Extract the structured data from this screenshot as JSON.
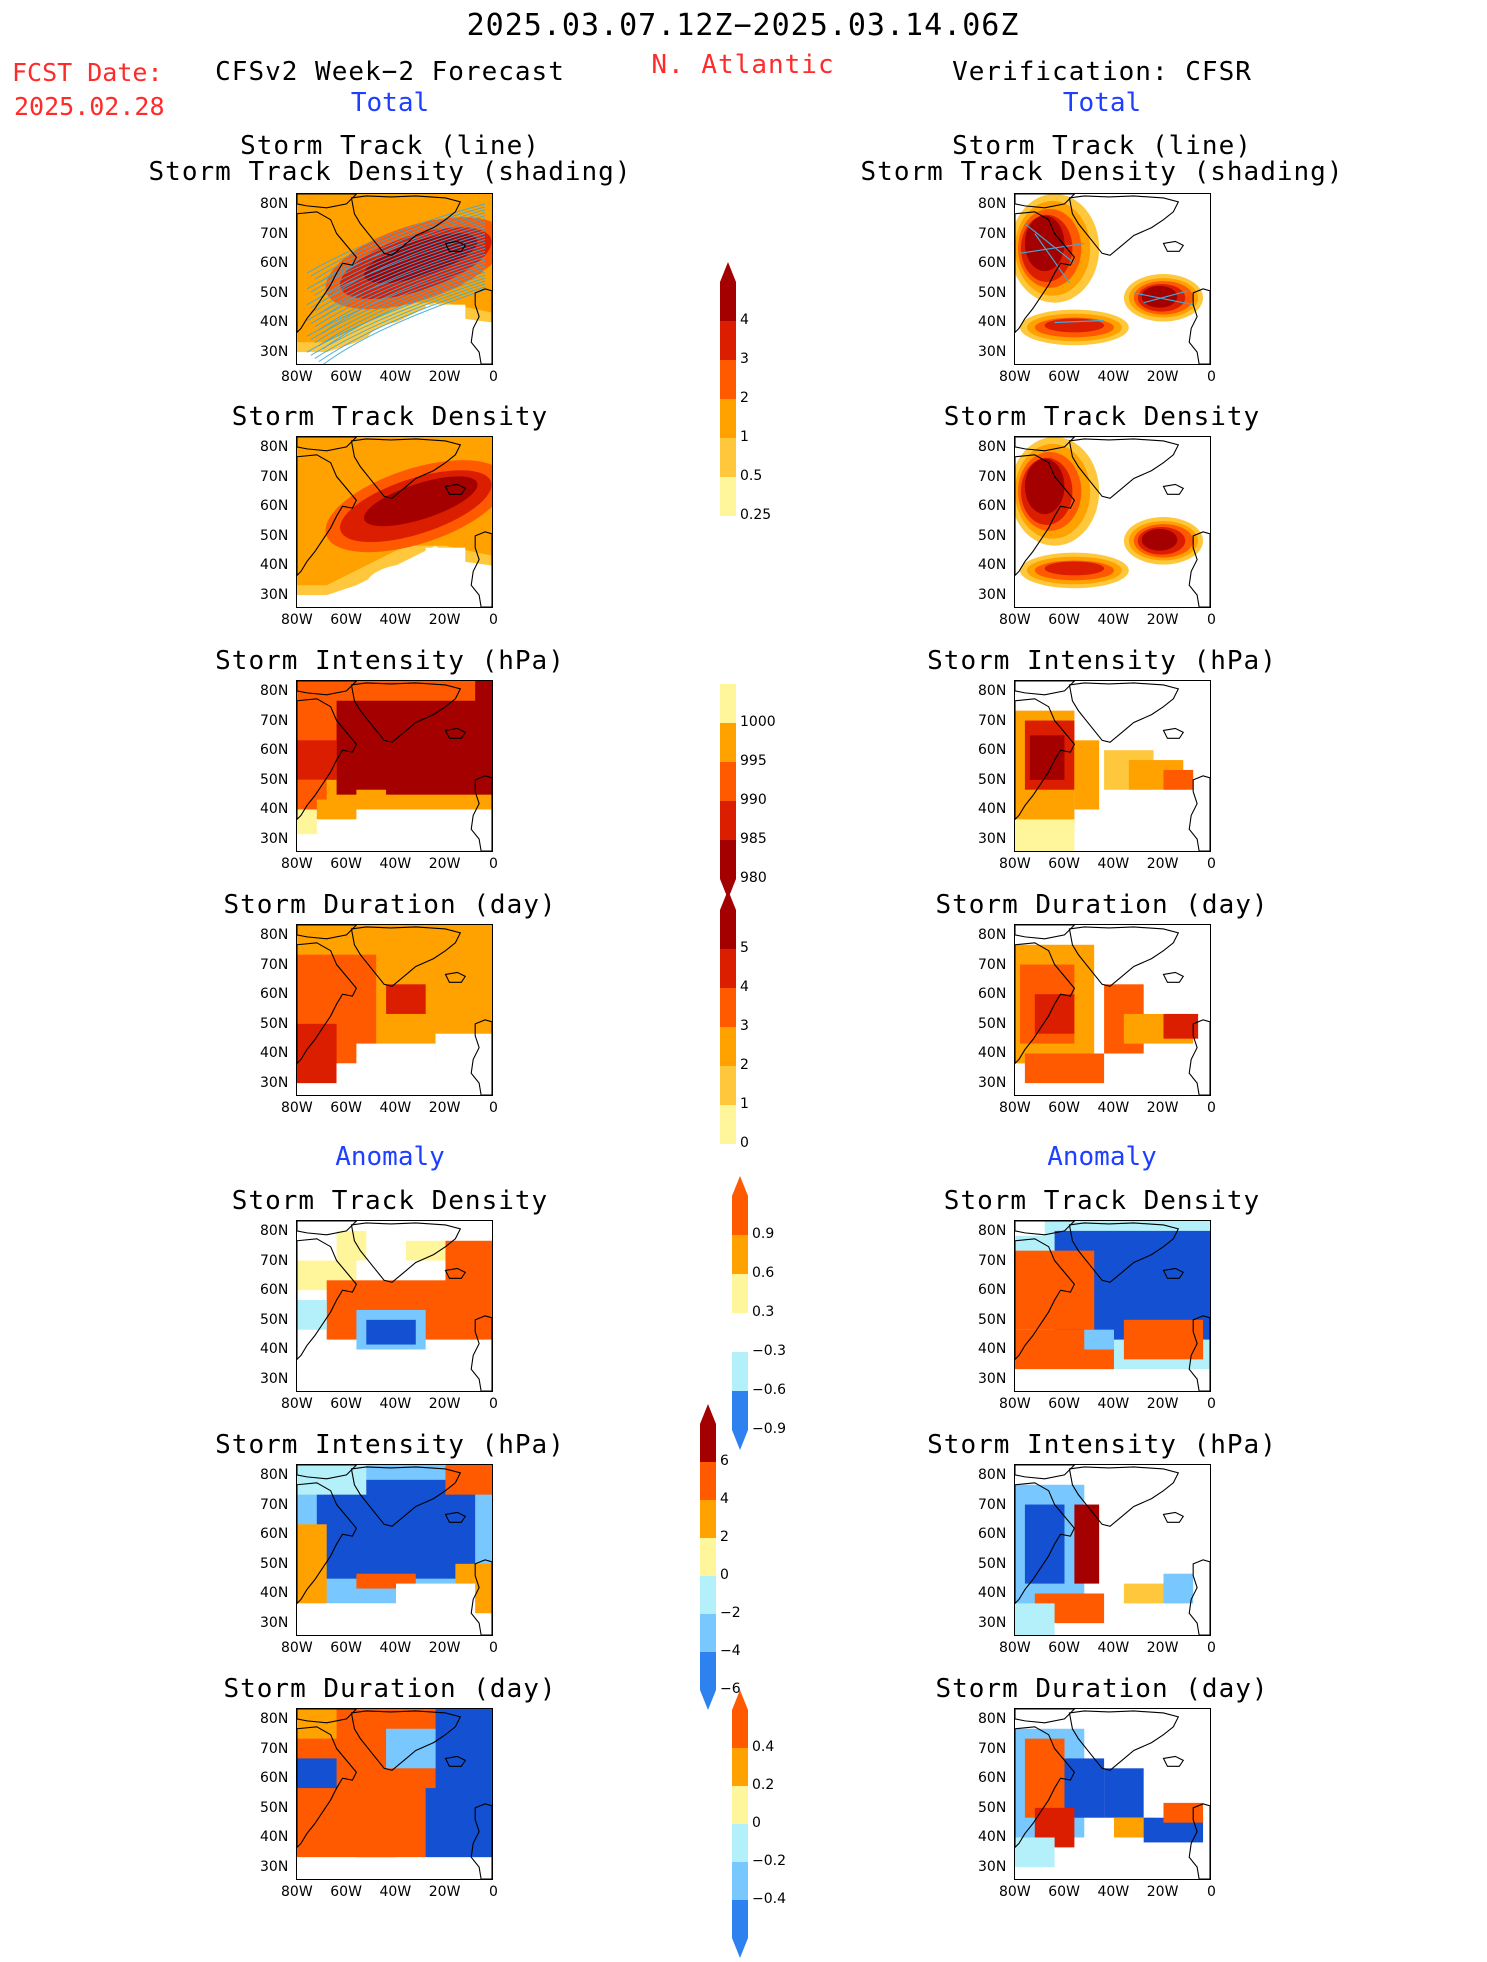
{
  "header": {
    "period": "2025.03.07.12Z−2025.03.14.06Z",
    "fcst_label": "FCST Date:",
    "fcst_date": "2025.02.28",
    "model": "CFSv2 Week−2 Forecast",
    "region": "N. Atlantic",
    "verification": "Verification: CFSR"
  },
  "sections": {
    "total": "Total",
    "anomaly": "Anomaly"
  },
  "panels": {
    "track_line": "Storm Track (line)",
    "track_density_shading": "Storm Track Density (shading)",
    "track_density": "Storm Track Density",
    "intensity": "Storm Intensity (hPa)",
    "duration": "Storm Duration (day)"
  },
  "axes": {
    "lat": [
      "80N",
      "70N",
      "60N",
      "50N",
      "40N",
      "30N"
    ],
    "lon": [
      "80W",
      "60W",
      "40W",
      "20W",
      "0"
    ]
  },
  "colorbars": {
    "total_density": [
      "4",
      "3",
      "2",
      "1",
      "0.5",
      "0.25"
    ],
    "total_intensity": [
      "1000",
      "995",
      "990",
      "985",
      "980"
    ],
    "total_duration": [
      "5",
      "4",
      "3",
      "2",
      "1",
      "0"
    ],
    "anom_density": [
      "0.9",
      "0.6",
      "0.3",
      "−0.3",
      "−0.6",
      "−0.9"
    ],
    "anom_intensity": [
      "6",
      "4",
      "2",
      "0",
      "−2",
      "−4",
      "−6"
    ],
    "anom_duration": [
      "0.4",
      "0.2",
      "0",
      "−0.2",
      "−0.4"
    ]
  },
  "colors": {
    "title_red": "#ff2b2b",
    "section_blue": "#1f3fff",
    "darkred": "#a50000",
    "red": "#dc1e00",
    "orangered": "#ff5a00",
    "orange": "#ffa200",
    "lightorange": "#ffc83c",
    "paleyellow": "#fff59b",
    "lightblue": "#b4f0fa",
    "skyblue": "#78c8ff",
    "blue": "#2d82f0",
    "darkblue": "#1450d2",
    "track_line": "#3fa9d9"
  }
}
